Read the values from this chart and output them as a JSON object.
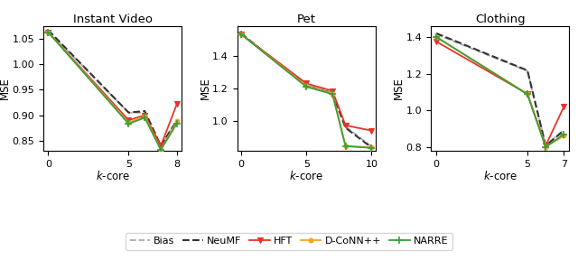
{
  "panels": [
    {
      "title": "Instant Video",
      "xlabel": "$k$-core",
      "ylabel": "MSE",
      "xticks": [
        0,
        5,
        8
      ],
      "series": {
        "Bias": {
          "x": [
            0,
            5,
            6,
            7,
            8
          ],
          "y": [
            1.065,
            0.905,
            0.905,
            0.84,
            0.888
          ],
          "color": "#aaaaaa",
          "lw": 1.3,
          "ls": "--",
          "marker": null,
          "ms": 0
        },
        "NeuMF": {
          "x": [
            0,
            5,
            6,
            7,
            8
          ],
          "y": [
            1.067,
            0.905,
            0.908,
            0.84,
            0.89
          ],
          "color": "#333333",
          "lw": 1.5,
          "ls": "--",
          "marker": null,
          "ms": 0
        },
        "HFT": {
          "x": [
            0,
            5,
            6,
            7,
            8
          ],
          "y": [
            1.063,
            0.89,
            0.9,
            0.84,
            0.922
          ],
          "color": "#e8332a",
          "lw": 1.3,
          "ls": "-",
          "marker": "v",
          "ms": 4
        },
        "D-CoNN++": {
          "x": [
            0,
            5,
            6,
            7,
            8
          ],
          "y": [
            1.063,
            0.885,
            0.898,
            0.832,
            0.888
          ],
          "color": "#f5a623",
          "lw": 1.3,
          "ls": "-",
          "marker": "o",
          "ms": 3.5
        },
        "NARRE": {
          "x": [
            0,
            5,
            6,
            7,
            8
          ],
          "y": [
            1.063,
            0.883,
            0.895,
            0.832,
            0.884
          ],
          "color": "#3a9e3a",
          "lw": 1.3,
          "ls": "-",
          "marker": "+",
          "ms": 5
        }
      },
      "ylim": [
        0.83,
        1.075
      ]
    },
    {
      "title": "Pet",
      "xlabel": "$k$-core",
      "ylabel": "MSE",
      "xticks": [
        0,
        5,
        10
      ],
      "series": {
        "Bias": {
          "x": [
            0,
            5,
            7,
            8,
            10
          ],
          "y": [
            1.53,
            1.22,
            1.175,
            0.968,
            0.845
          ],
          "color": "#aaaaaa",
          "lw": 1.3,
          "ls": "--",
          "marker": null,
          "ms": 0
        },
        "NeuMF": {
          "x": [
            0,
            5,
            7,
            8,
            10
          ],
          "y": [
            1.535,
            1.215,
            1.17,
            0.96,
            0.84
          ],
          "color": "#333333",
          "lw": 1.5,
          "ls": "--",
          "marker": null,
          "ms": 0
        },
        "HFT": {
          "x": [
            0,
            5,
            7,
            8,
            10
          ],
          "y": [
            1.53,
            1.23,
            1.185,
            0.975,
            0.943
          ],
          "color": "#e8332a",
          "lw": 1.3,
          "ls": "-",
          "marker": "v",
          "ms": 4
        },
        "D-CoNN++": {
          "x": [
            0,
            5,
            7,
            8,
            10
          ],
          "y": [
            1.53,
            1.215,
            1.168,
            0.85,
            0.84
          ],
          "color": "#f5a623",
          "lw": 1.3,
          "ls": "-",
          "marker": "o",
          "ms": 3.5
        },
        "NARRE": {
          "x": [
            0,
            5,
            7,
            8,
            10
          ],
          "y": [
            1.53,
            1.21,
            1.165,
            0.848,
            0.838
          ],
          "color": "#3a9e3a",
          "lw": 1.3,
          "ls": "-",
          "marker": "+",
          "ms": 5
        }
      },
      "ylim": [
        0.82,
        1.58
      ]
    },
    {
      "title": "Clothing",
      "xlabel": "$k$-core",
      "ylabel": "MSE",
      "xticks": [
        0,
        5,
        7
      ],
      "series": {
        "Bias": {
          "x": [
            0,
            5,
            6,
            7
          ],
          "y": [
            1.415,
            1.215,
            0.81,
            0.895
          ],
          "color": "#aaaaaa",
          "lw": 1.3,
          "ls": "--",
          "marker": null,
          "ms": 0
        },
        "NeuMF": {
          "x": [
            0,
            5,
            6,
            7
          ],
          "y": [
            1.42,
            1.218,
            0.808,
            0.89
          ],
          "color": "#333333",
          "lw": 1.5,
          "ls": "--",
          "marker": null,
          "ms": 0
        },
        "HFT": {
          "x": [
            0,
            5,
            6,
            7
          ],
          "y": [
            1.375,
            1.09,
            0.808,
            1.02
          ],
          "color": "#e8332a",
          "lw": 1.3,
          "ls": "-",
          "marker": "v",
          "ms": 4
        },
        "D-CoNN++": {
          "x": [
            0,
            5,
            6,
            7
          ],
          "y": [
            1.4,
            1.09,
            0.802,
            0.862
          ],
          "color": "#f5a623",
          "lw": 1.3,
          "ls": "-",
          "marker": "o",
          "ms": 3.5
        },
        "NARRE": {
          "x": [
            0,
            5,
            6,
            7
          ],
          "y": [
            1.4,
            1.088,
            0.8,
            0.87
          ],
          "color": "#3a9e3a",
          "lw": 1.3,
          "ls": "-",
          "marker": "+",
          "ms": 5
        }
      },
      "ylim": [
        0.78,
        1.46
      ]
    }
  ],
  "legend_order": [
    "Bias",
    "NeuMF",
    "HFT",
    "D-CoNN++",
    "NARRE"
  ],
  "fig_width": 6.4,
  "fig_height": 2.88,
  "dpi": 100
}
